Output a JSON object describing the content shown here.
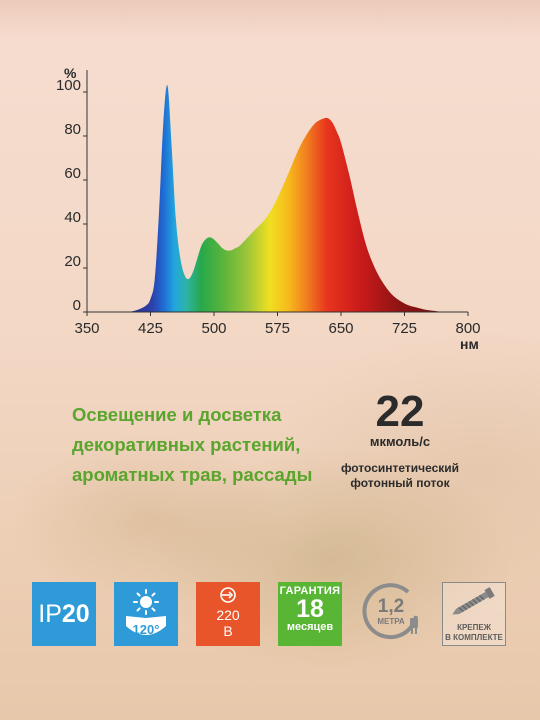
{
  "chart_data": {
    "type": "area",
    "title": "",
    "xlabel": "нм",
    "ylabel": "%",
    "xlim": [
      350,
      800
    ],
    "ylim": [
      0,
      100
    ],
    "x_ticks": [
      "350",
      "425",
      "500",
      "575",
      "650",
      "725",
      "800"
    ],
    "y_ticks": [
      "0",
      "20",
      "40",
      "60",
      "80",
      "100"
    ],
    "grid": false,
    "fill": "wavelength spectrum colors",
    "series": [
      {
        "x": [
          400,
          410,
          420,
          425,
          430,
          435,
          440,
          445,
          450,
          455,
          460,
          465,
          470,
          475,
          480,
          485,
          490,
          495,
          500,
          505,
          510,
          515,
          520,
          525,
          530,
          540,
          550,
          560,
          570,
          580,
          590,
          600,
          610,
          620,
          630,
          635,
          640,
          645,
          650,
          660,
          670,
          680,
          690,
          700,
          710,
          720,
          730,
          740,
          750,
          760,
          770,
          780
        ],
        "values": [
          0,
          1,
          3,
          6,
          15,
          45,
          85,
          103,
          75,
          42,
          25,
          17,
          15,
          18,
          24,
          30,
          33,
          34,
          33,
          31,
          29,
          28,
          28,
          29,
          30,
          34,
          38,
          42,
          48,
          56,
          65,
          74,
          81,
          86,
          88,
          88,
          86,
          82,
          77,
          62,
          45,
          30,
          20,
          13,
          8,
          5,
          3,
          2,
          1,
          0.5,
          0,
          0
        ]
      }
    ]
  },
  "headline": {
    "line1": "Освещение и досветка",
    "line2": "декоративных растений,",
    "line3": "ароматных трав, рассады"
  },
  "flux": {
    "value": "22",
    "unit": "мкмоль/с",
    "desc_line1": "фотосинтетический",
    "desc_line2": "фотонный поток"
  },
  "badges": {
    "ip_prefix": "IP",
    "ip_number": "20",
    "angle": "120°",
    "voltage_number": "220",
    "voltage_unit": "В",
    "warranty_top": "ГАРАНТИЯ",
    "warranty_number": "18",
    "warranty_bottom": "месяцев",
    "length_value": "1,2",
    "length_unit": "МЕТРА",
    "mount_line1": "КРЕПЕЖ",
    "mount_line2": "В КОМПЛЕКТЕ"
  },
  "colors": {
    "headline_green": "#5aa52d",
    "badge_blue": "#2f9ad8",
    "badge_orange": "#e9552b",
    "badge_green": "#59b534"
  }
}
